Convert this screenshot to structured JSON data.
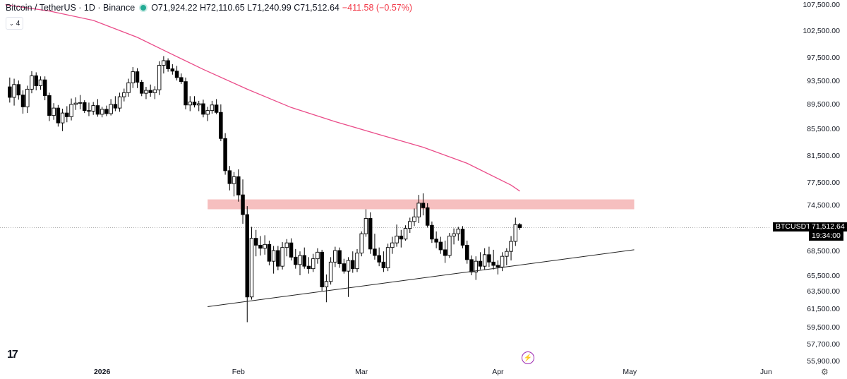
{
  "legend": {
    "symbol": "Bitcoin / TetherUS · 1D · Binance",
    "ohlc": "O71,924.22 H72,110.65 L71,240.99 C71,512.64",
    "change": "−411.58 (−0.57%)"
  },
  "indicators_toggle": "4",
  "last_price": {
    "ticker": "BTCUSDT",
    "value": "71,512.64",
    "countdown": "19:34:00"
  },
  "logo": "17",
  "colors": {
    "ma": "#ea4c89",
    "zone": "#f4b4b4",
    "candle_up": "#ffffff",
    "candle_down": "#000000"
  },
  "chart_data": {
    "type": "candlestick",
    "title": "Bitcoin / TetherUS · 1D · Binance",
    "y_axis_side": "right",
    "y_ticks": [
      {
        "v": 107500,
        "label": "107,500.00"
      },
      {
        "v": 102500,
        "label": "102,500.00"
      },
      {
        "v": 97500,
        "label": "97,500.00"
      },
      {
        "v": 93500,
        "label": "93,500.00"
      },
      {
        "v": 89500,
        "label": "89,500.00"
      },
      {
        "v": 85500,
        "label": "85,500.00"
      },
      {
        "v": 81500,
        "label": "81,500.00"
      },
      {
        "v": 77500,
        "label": "77,500.00"
      },
      {
        "v": 74500,
        "label": "74,500.00"
      },
      {
        "v": 68500,
        "label": "68,500.00"
      },
      {
        "v": 65500,
        "label": "65,500.00"
      },
      {
        "v": 63500,
        "label": "63,500.00"
      },
      {
        "v": 61500,
        "label": "61,500.00"
      },
      {
        "v": 59500,
        "label": "59,500.00"
      },
      {
        "v": 57700,
        "label": "57,700.00"
      },
      {
        "v": 55900,
        "label": "55,900.00"
      }
    ],
    "x_ticks": [
      {
        "day": 22,
        "label": "2026"
      },
      {
        "day": 53,
        "label": "Feb"
      },
      {
        "day": 81,
        "label": "Mar"
      },
      {
        "day": 112,
        "label": "Apr"
      },
      {
        "day": 142,
        "label": "May"
      },
      {
        "day": 173,
        "label": "Jun"
      }
    ],
    "candles": [
      [
        1,
        92400,
        94000,
        89700,
        90600
      ],
      [
        2,
        90600,
        93800,
        89200,
        92800
      ],
      [
        3,
        92800,
        93500,
        90200,
        91000
      ],
      [
        4,
        91000,
        91800,
        87900,
        89000
      ],
      [
        5,
        89000,
        92600,
        88000,
        92000
      ],
      [
        6,
        92000,
        95100,
        91300,
        94300
      ],
      [
        7,
        94300,
        94900,
        91800,
        92600
      ],
      [
        8,
        92600,
        94200,
        91900,
        93600
      ],
      [
        9,
        93600,
        94200,
        90100,
        90900
      ],
      [
        10,
        90900,
        91400,
        86700,
        87600
      ],
      [
        11,
        87600,
        89600,
        86900,
        88800
      ],
      [
        12,
        88800,
        89300,
        85800,
        86400
      ],
      [
        13,
        86400,
        88700,
        85100,
        88000
      ],
      [
        14,
        88000,
        89100,
        86500,
        87400
      ],
      [
        15,
        87400,
        90400,
        86800,
        89400
      ],
      [
        16,
        89400,
        90600,
        88500,
        89600
      ],
      [
        17,
        89600,
        91000,
        88600,
        89700
      ],
      [
        18,
        89700,
        90100,
        88000,
        88400
      ],
      [
        19,
        88400,
        89700,
        87500,
        88300
      ],
      [
        20,
        88300,
        89800,
        87700,
        89200
      ],
      [
        21,
        89200,
        90300,
        87400,
        87800
      ],
      [
        22,
        87800,
        89000,
        87300,
        88600
      ],
      [
        23,
        88600,
        89200,
        87500,
        87900
      ],
      [
        24,
        87900,
        90300,
        87600,
        89400
      ],
      [
        25,
        89400,
        90800,
        88300,
        88800
      ],
      [
        26,
        88800,
        91400,
        88200,
        90700
      ],
      [
        27,
        90700,
        92100,
        89900,
        91400
      ],
      [
        28,
        91400,
        93800,
        90700,
        93100
      ],
      [
        29,
        93100,
        95800,
        92200,
        95000
      ],
      [
        30,
        95000,
        95600,
        92200,
        93200
      ],
      [
        31,
        93200,
        93600,
        90800,
        91300
      ],
      [
        32,
        91300,
        92400,
        90300,
        91800
      ],
      [
        33,
        91800,
        92800,
        90700,
        91400
      ],
      [
        34,
        91400,
        92500,
        90300,
        91900
      ],
      [
        35,
        91900,
        96800,
        91000,
        96100
      ],
      [
        36,
        96100,
        97700,
        94700,
        96900
      ],
      [
        37,
        96900,
        97300,
        95000,
        95500
      ],
      [
        38,
        95500,
        96300,
        94500,
        95100
      ],
      [
        39,
        95100,
        96000,
        93500,
        94000
      ],
      [
        40,
        94000,
        94700,
        92900,
        93300
      ],
      [
        41,
        93300,
        94000,
        88600,
        89300
      ],
      [
        42,
        89300,
        90800,
        88300,
        89800
      ],
      [
        43,
        89800,
        90800,
        88900,
        89300
      ],
      [
        44,
        89300,
        90000,
        88300,
        89500
      ],
      [
        45,
        89500,
        90200,
        87300,
        87800
      ],
      [
        46,
        87800,
        89000,
        86700,
        88400
      ],
      [
        47,
        88400,
        90000,
        87900,
        89300
      ],
      [
        48,
        89300,
        90300,
        87800,
        88100
      ],
      [
        49,
        88100,
        89400,
        83600,
        84000
      ],
      [
        50,
        84000,
        84800,
        78600,
        79200
      ],
      [
        51,
        79200,
        79900,
        76400,
        77300
      ],
      [
        52,
        77300,
        79000,
        75600,
        78300
      ],
      [
        53,
        78300,
        79400,
        74900,
        75800
      ],
      [
        54,
        75800,
        77900,
        72000,
        73200
      ],
      [
        55,
        73200,
        74300,
        60000,
        62800
      ],
      [
        56,
        62800,
        71600,
        62500,
        70100
      ],
      [
        57,
        70100,
        71200,
        67800,
        69200
      ],
      [
        58,
        69200,
        70400,
        67900,
        68800
      ],
      [
        59,
        68800,
        70500,
        68000,
        69300
      ],
      [
        60,
        69300,
        69800,
        66700,
        67200
      ],
      [
        61,
        67200,
        69100,
        65700,
        68500
      ],
      [
        62,
        68500,
        69100,
        66100,
        66600
      ],
      [
        63,
        66600,
        69600,
        66200,
        68900
      ],
      [
        64,
        68900,
        70000,
        67800,
        69500
      ],
      [
        65,
        69500,
        70100,
        67300,
        67700
      ],
      [
        66,
        67700,
        68700,
        66300,
        66800
      ],
      [
        67,
        66800,
        68400,
        65500,
        67900
      ],
      [
        68,
        67900,
        68900,
        66300,
        66600
      ],
      [
        69,
        66600,
        67700,
        65700,
        66300
      ],
      [
        70,
        66300,
        68100,
        65900,
        67500
      ],
      [
        71,
        67500,
        68800,
        66900,
        68300
      ],
      [
        72,
        68300,
        68600,
        63500,
        64000
      ],
      [
        73,
        64000,
        65600,
        62200,
        64700
      ],
      [
        74,
        64700,
        67700,
        64300,
        67100
      ],
      [
        75,
        67100,
        69000,
        66500,
        68500
      ],
      [
        76,
        68500,
        68900,
        66400,
        66900
      ],
      [
        77,
        66900,
        67500,
        65700,
        66000
      ],
      [
        78,
        66000,
        67700,
        62800,
        67300
      ],
      [
        79,
        67300,
        68400,
        65800,
        66300
      ],
      [
        80,
        66300,
        68700,
        65900,
        68200
      ],
      [
        81,
        68200,
        71000,
        67800,
        70700
      ],
      [
        82,
        70700,
        73900,
        70300,
        72700
      ],
      [
        83,
        72700,
        73500,
        68100,
        68700
      ],
      [
        84,
        68700,
        70700,
        67400,
        67900
      ],
      [
        85,
        67900,
        68900,
        66600,
        67100
      ],
      [
        86,
        67100,
        68400,
        65900,
        66400
      ],
      [
        87,
        66400,
        69400,
        66000,
        68900
      ],
      [
        88,
        68900,
        70300,
        68100,
        69500
      ],
      [
        89,
        69500,
        71900,
        69000,
        70400
      ],
      [
        90,
        70400,
        71200,
        68900,
        70000
      ],
      [
        91,
        70000,
        71800,
        69800,
        71400
      ],
      [
        92,
        71400,
        72800,
        70800,
        72300
      ],
      [
        93,
        72300,
        74000,
        71700,
        72900
      ],
      [
        94,
        72900,
        75800,
        72100,
        74700
      ],
      [
        95,
        74700,
        76000,
        73100,
        74100
      ],
      [
        96,
        74100,
        74700,
        71500,
        71800
      ],
      [
        97,
        71800,
        72300,
        69500,
        70000
      ],
      [
        98,
        70000,
        71000,
        68800,
        69600
      ],
      [
        99,
        69600,
        70300,
        68100,
        68600
      ],
      [
        100,
        68600,
        69800,
        67000,
        67900
      ],
      [
        101,
        67900,
        70800,
        67600,
        70400
      ],
      [
        102,
        70400,
        71400,
        69300,
        70700
      ],
      [
        103,
        70700,
        71600,
        69800,
        71300
      ],
      [
        104,
        71300,
        71700,
        68800,
        69200
      ],
      [
        105,
        69200,
        69800,
        66900,
        67400
      ],
      [
        106,
        67400,
        67900,
        65500,
        65900
      ],
      [
        107,
        65900,
        67800,
        64900,
        67200
      ],
      [
        108,
        67200,
        68300,
        66200,
        66600
      ],
      [
        109,
        66600,
        68800,
        66200,
        68000
      ],
      [
        110,
        68000,
        69000,
        66500,
        67100
      ],
      [
        111,
        67100,
        68600,
        66200,
        66700
      ],
      [
        112,
        66700,
        67300,
        65600,
        66500
      ],
      [
        113,
        66500,
        68300,
        66000,
        67800
      ],
      [
        114,
        67800,
        68800,
        66700,
        68400
      ],
      [
        115,
        68400,
        70400,
        67300,
        69700
      ],
      [
        116,
        69700,
        72800,
        69100,
        71900
      ],
      [
        117,
        71900,
        72100,
        71200,
        71500
      ]
    ],
    "ma_line": [
      [
        0,
        107400
      ],
      [
        10,
        106200
      ],
      [
        20,
        104400
      ],
      [
        30,
        101200
      ],
      [
        37,
        98400
      ],
      [
        45,
        95400
      ],
      [
        55,
        92000
      ],
      [
        65,
        88900
      ],
      [
        75,
        86600
      ],
      [
        85,
        84600
      ],
      [
        95,
        82700
      ],
      [
        105,
        80300
      ],
      [
        115,
        77100
      ],
      [
        117,
        76300
      ]
    ],
    "resistance_zone": {
      "from_day": 46,
      "to_day": 143,
      "low": 73900,
      "high": 75200
    },
    "trendline": {
      "from_day": 46,
      "from_price": 61700,
      "to_day": 143,
      "to_price": 68600
    },
    "last_price_line": 71512.64
  }
}
